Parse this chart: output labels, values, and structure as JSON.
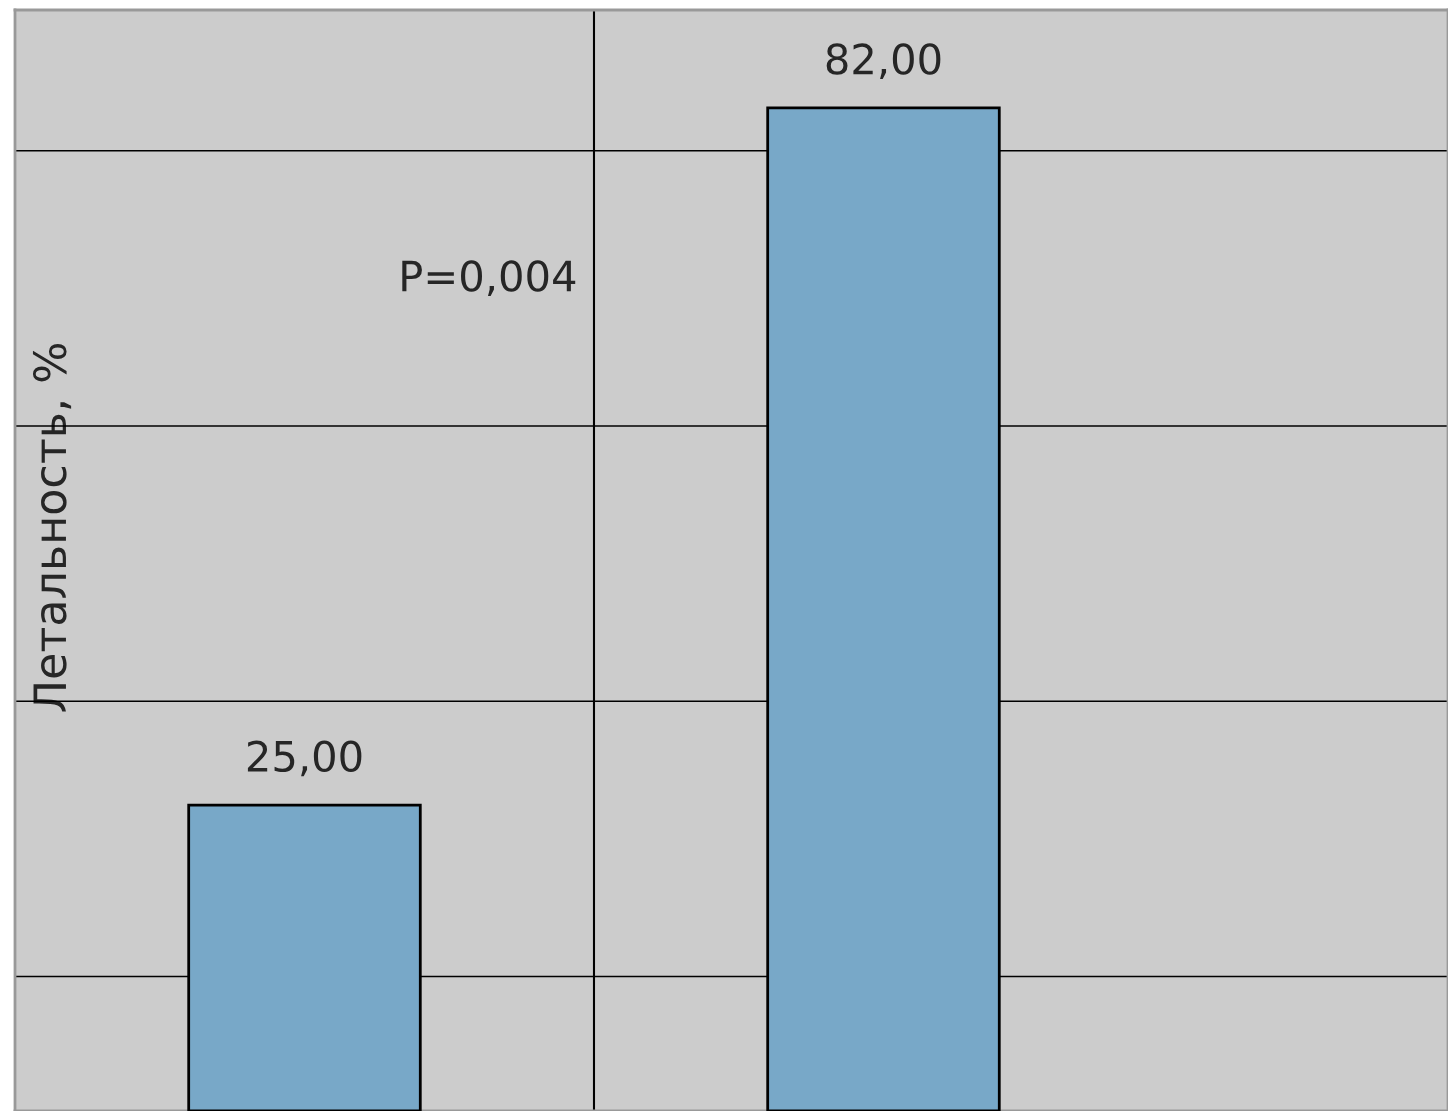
{
  "chart_data": {
    "type": "bar",
    "ylabel": "Летальность, %",
    "categories": [
      null,
      null
    ],
    "values": [
      25,
      82
    ],
    "color": "#78a8c8",
    "value_labels": [
      "25,00",
      "82,00"
    ],
    "annotations": [
      "P=0,004"
    ],
    "ylim": [
      0,
      90
    ],
    "yticks": [
      {
        "value": 11,
        "label": null
      },
      {
        "value": 33.5,
        "label": null
      },
      {
        "value": 56,
        "label": null
      },
      {
        "value": 78.5,
        "label": null
      }
    ],
    "grid": true
  }
}
